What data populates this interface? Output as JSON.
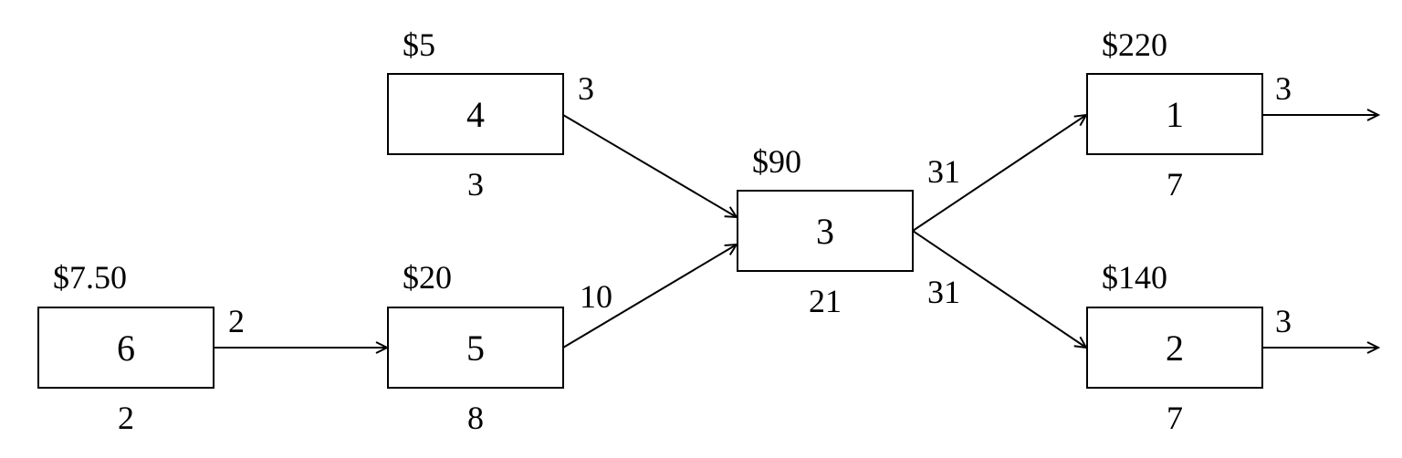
{
  "nodes": {
    "n6": {
      "id": "6",
      "price": "$7.50",
      "out": "2",
      "bottom": "2"
    },
    "n5": {
      "id": "5",
      "price": "$20",
      "out": "10",
      "bottom": "8"
    },
    "n4": {
      "id": "4",
      "price": "$5",
      "out": "3",
      "bottom": "3"
    },
    "n3": {
      "id": "3",
      "price": "$90",
      "out_top": "31",
      "out_bottom": "31",
      "bottom": "21"
    },
    "n1": {
      "id": "1",
      "price": "$220",
      "out": "3",
      "bottom": "7"
    },
    "n2": {
      "id": "2",
      "price": "$140",
      "out": "3",
      "bottom": "7"
    }
  },
  "edges": [
    {
      "from": "6",
      "to": "5"
    },
    {
      "from": "4",
      "to": "3"
    },
    {
      "from": "5",
      "to": "3"
    },
    {
      "from": "3",
      "to": "1"
    },
    {
      "from": "3",
      "to": "2"
    },
    {
      "from": "1",
      "to": "output"
    },
    {
      "from": "2",
      "to": "output"
    }
  ]
}
